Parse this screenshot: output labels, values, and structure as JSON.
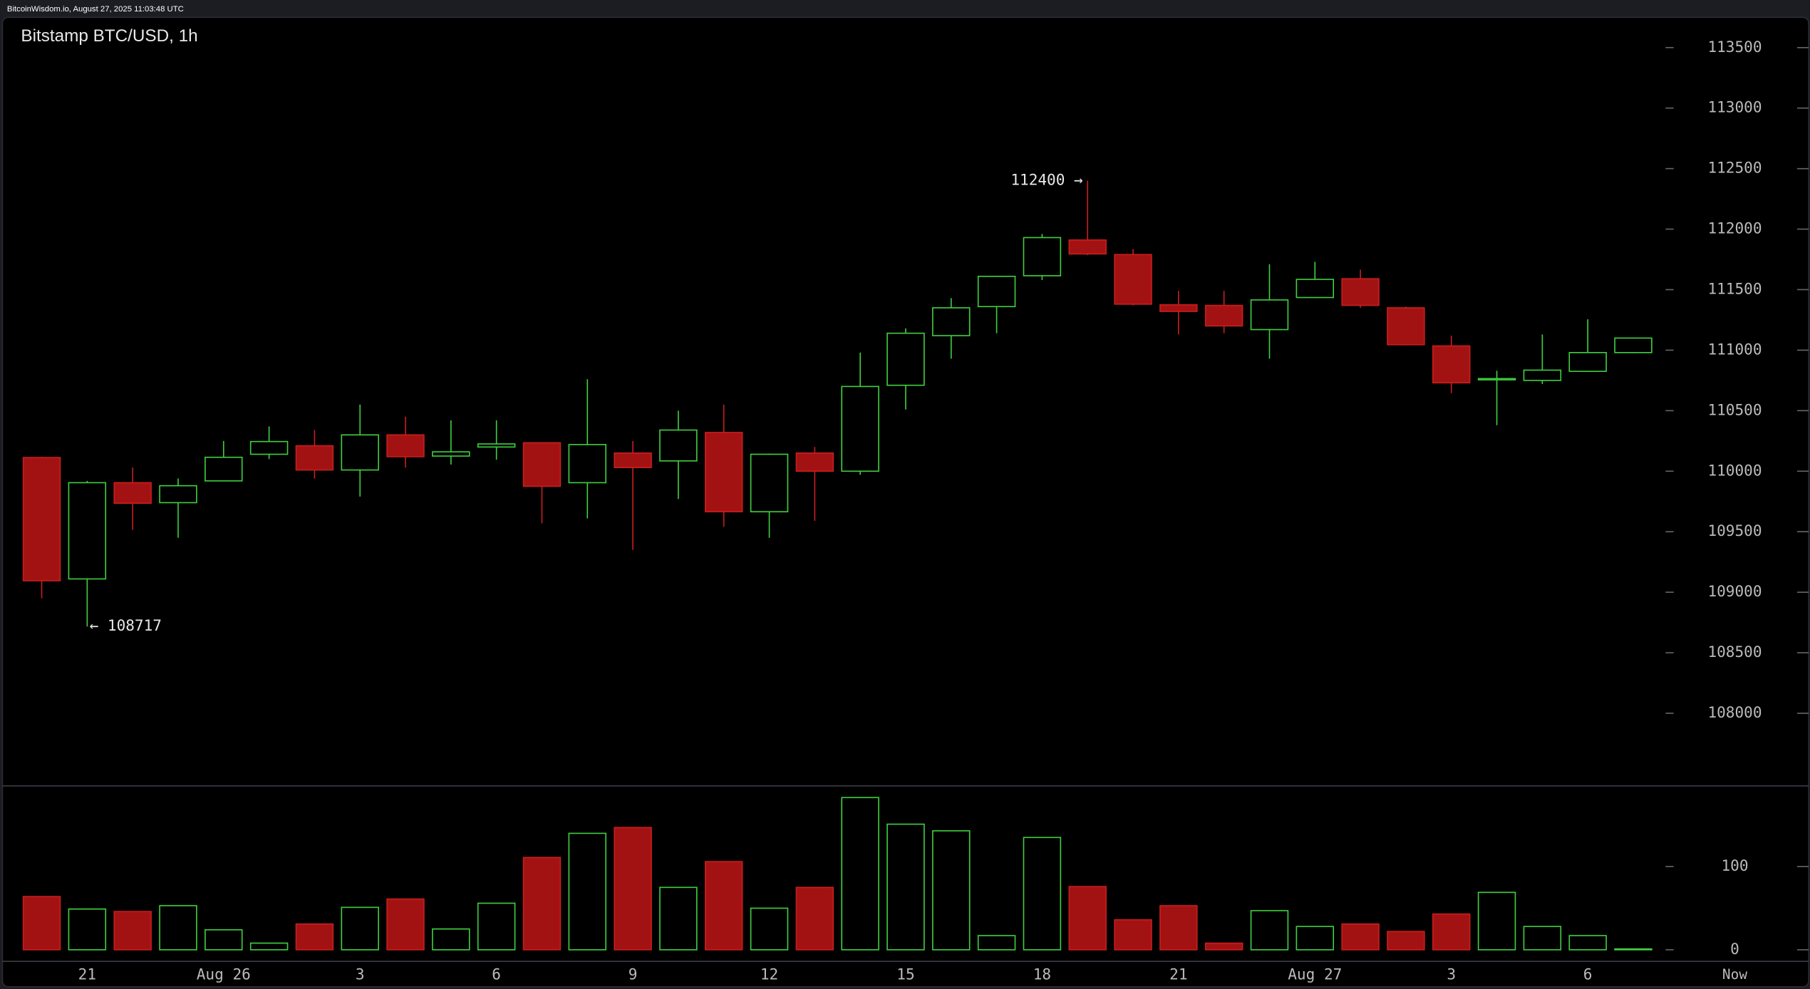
{
  "header": "BitcoinWisdom.io, August 27, 2025 11:03:48 UTC",
  "chart_data": {
    "type": "candlestick",
    "title": "Bitstamp BTC/USD, 1h",
    "categories": [
      null,
      "21",
      null,
      null,
      "Aug 26",
      null,
      null,
      "3",
      null,
      null,
      "6",
      null,
      null,
      "9",
      null,
      null,
      "12",
      null,
      null,
      "15",
      null,
      null,
      "18",
      null,
      null,
      "21",
      null,
      null,
      "Aug 27",
      null,
      null,
      "3",
      null,
      null,
      "6",
      null
    ],
    "now_label": "Now",
    "open": [
      110113,
      109110,
      109905,
      109740,
      109920,
      110140,
      110210,
      110010,
      110300,
      110125,
      110200,
      110235,
      109905,
      110150,
      110085,
      110320,
      109665,
      110150,
      110000,
      110710,
      111120,
      111360,
      111615,
      111910,
      111790,
      111375,
      111370,
      111170,
      111435,
      111590,
      111350,
      111035,
      110755,
      110750,
      110825,
      110980
    ],
    "high": [
      110120,
      109920,
      110030,
      109940,
      110250,
      110370,
      110340,
      110550,
      110450,
      110420,
      110420,
      110240,
      110760,
      110250,
      110500,
      110550,
      110145,
      110200,
      110980,
      111180,
      111430,
      111615,
      111960,
      112400,
      111835,
      111490,
      111490,
      111710,
      111730,
      111665,
      111360,
      111120,
      110830,
      111130,
      111255,
      111105
    ],
    "low": [
      108950,
      108717,
      109515,
      109450,
      109920,
      110100,
      109940,
      109790,
      110030,
      110055,
      110095,
      109570,
      109610,
      109350,
      109770,
      109540,
      109450,
      109590,
      109970,
      110510,
      110930,
      111140,
      111580,
      111785,
      111370,
      111130,
      111140,
      110930,
      111430,
      111350,
      111040,
      110645,
      110380,
      110720,
      110820,
      110975
    ],
    "close": [
      109095,
      109905,
      109735,
      109880,
      110115,
      110245,
      110010,
      110300,
      110120,
      110160,
      110225,
      109875,
      110220,
      110030,
      110340,
      109665,
      110140,
      110000,
      110700,
      111140,
      111350,
      111610,
      111930,
      111795,
      111380,
      111320,
      111200,
      111415,
      111585,
      111370,
      111045,
      110730,
      110765,
      110835,
      110980,
      111100
    ],
    "volume": [
      64,
      49,
      46,
      53,
      24,
      8,
      31,
      51,
      61,
      25,
      56,
      111,
      140,
      147,
      75,
      106,
      50,
      75,
      183,
      151,
      143,
      17,
      135,
      76,
      36,
      53,
      8,
      47,
      28,
      31,
      22,
      43,
      69,
      28,
      17,
      1
    ],
    "high_label": "112400 →",
    "low_label": "← 108717",
    "ylim": [
      107400,
      113750
    ],
    "yticks": [
      108000,
      108500,
      109000,
      109500,
      110000,
      110500,
      111000,
      111500,
      112000,
      112500,
      113000,
      113500
    ],
    "volume_lim": [
      0,
      197
    ],
    "volume_ticks": [
      0,
      100
    ],
    "up_color": "#3fcf3f",
    "down_color": "#a31212"
  }
}
